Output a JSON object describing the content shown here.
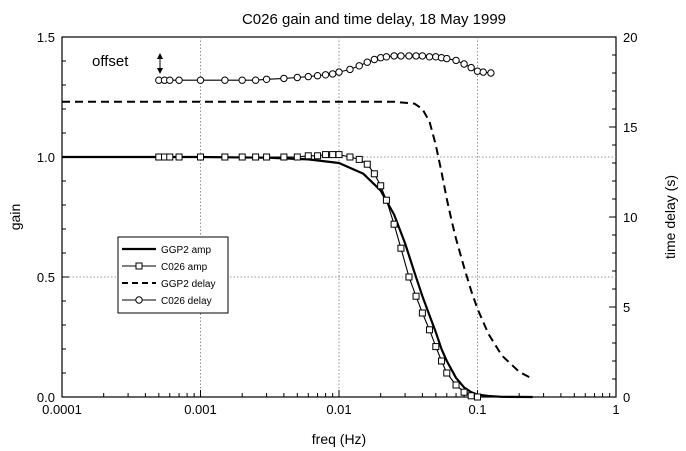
{
  "chart_data": {
    "type": "line",
    "title": "C026 gain and time delay, 18 May 1999",
    "xlabel": "freq (Hz)",
    "ylabel_left": "gain",
    "ylabel_right": "time delay (s)",
    "x_scale": "log",
    "xlim": [
      0.0001,
      1
    ],
    "ylim_left": [
      0,
      1.5
    ],
    "ylim_right": [
      0,
      20
    ],
    "x_ticks": [
      "0.0001",
      "0.001",
      "0.01",
      "0.1",
      "1"
    ],
    "y_ticks_left": [
      "0.0",
      "0.5",
      "1.0",
      "1.5"
    ],
    "y_ticks_right": [
      "0",
      "5",
      "10",
      "15",
      "20"
    ],
    "grid": "dotted",
    "legend_position": "center-left",
    "annotation": "offset",
    "series": [
      {
        "name": "GGP2 amp",
        "axis": "left",
        "style": "solid-thick",
        "x": [
          0.0001,
          0.001,
          0.003,
          0.006,
          0.01,
          0.015,
          0.02,
          0.025,
          0.03,
          0.035,
          0.04,
          0.045,
          0.05,
          0.055,
          0.06,
          0.07,
          0.08,
          0.09,
          0.1,
          0.12,
          0.15,
          0.25
        ],
        "y": [
          1.0,
          1.0,
          0.997,
          0.99,
          0.975,
          0.93,
          0.86,
          0.76,
          0.64,
          0.52,
          0.42,
          0.34,
          0.27,
          0.2,
          0.15,
          0.08,
          0.04,
          0.02,
          0.01,
          0.004,
          0.001,
          0.0
        ]
      },
      {
        "name": "C026 amp",
        "axis": "left",
        "style": "solid-squares",
        "x": [
          0.0005,
          0.00055,
          0.0006,
          0.0007,
          0.001,
          0.0015,
          0.002,
          0.0025,
          0.003,
          0.004,
          0.005,
          0.006,
          0.007,
          0.008,
          0.009,
          0.01,
          0.012,
          0.014,
          0.016,
          0.018,
          0.02,
          0.022,
          0.025,
          0.028,
          0.032,
          0.036,
          0.04,
          0.045,
          0.05,
          0.055,
          0.06,
          0.07,
          0.08,
          0.09,
          0.1
        ],
        "y": [
          1.0,
          1.0,
          1.0,
          1.0,
          1.0,
          1.0,
          1.0,
          1.0,
          1.0,
          1.0,
          1.0,
          1.005,
          1.005,
          1.01,
          1.01,
          1.01,
          1.0,
          0.99,
          0.97,
          0.93,
          0.88,
          0.82,
          0.72,
          0.62,
          0.5,
          0.42,
          0.35,
          0.28,
          0.21,
          0.15,
          0.1,
          0.05,
          0.02,
          0.005,
          0.0
        ]
      },
      {
        "name": "GGP2 delay",
        "axis": "right",
        "style": "dashed",
        "x": [
          0.0001,
          0.001,
          0.01,
          0.025,
          0.035,
          0.04,
          0.045,
          0.05,
          0.055,
          0.06,
          0.065,
          0.07,
          0.08,
          0.09,
          0.1,
          0.12,
          0.15,
          0.2,
          0.25
        ],
        "y": [
          16.4,
          16.4,
          16.4,
          16.4,
          16.3,
          16.0,
          15.3,
          14.0,
          12.5,
          11.0,
          9.8,
          8.8,
          7.2,
          5.9,
          4.9,
          3.5,
          2.3,
          1.4,
          1.0
        ]
      },
      {
        "name": "C026 delay",
        "axis": "right",
        "style": "solid-circles",
        "x": [
          0.0005,
          0.00055,
          0.0006,
          0.0007,
          0.001,
          0.0015,
          0.002,
          0.0025,
          0.003,
          0.004,
          0.005,
          0.006,
          0.007,
          0.008,
          0.009,
          0.01,
          0.012,
          0.014,
          0.016,
          0.018,
          0.02,
          0.022,
          0.025,
          0.028,
          0.032,
          0.036,
          0.04,
          0.045,
          0.05,
          0.055,
          0.06,
          0.07,
          0.08,
          0.09,
          0.1,
          0.11,
          0.125
        ],
        "y": [
          17.6,
          17.6,
          17.6,
          17.6,
          17.6,
          17.6,
          17.6,
          17.6,
          17.65,
          17.7,
          17.75,
          17.8,
          17.85,
          17.9,
          17.95,
          18.05,
          18.2,
          18.4,
          18.6,
          18.75,
          18.85,
          18.9,
          18.95,
          18.95,
          18.95,
          18.95,
          18.95,
          18.9,
          18.9,
          18.85,
          18.8,
          18.7,
          18.5,
          18.3,
          18.1,
          18.05,
          18.0
        ]
      }
    ]
  }
}
